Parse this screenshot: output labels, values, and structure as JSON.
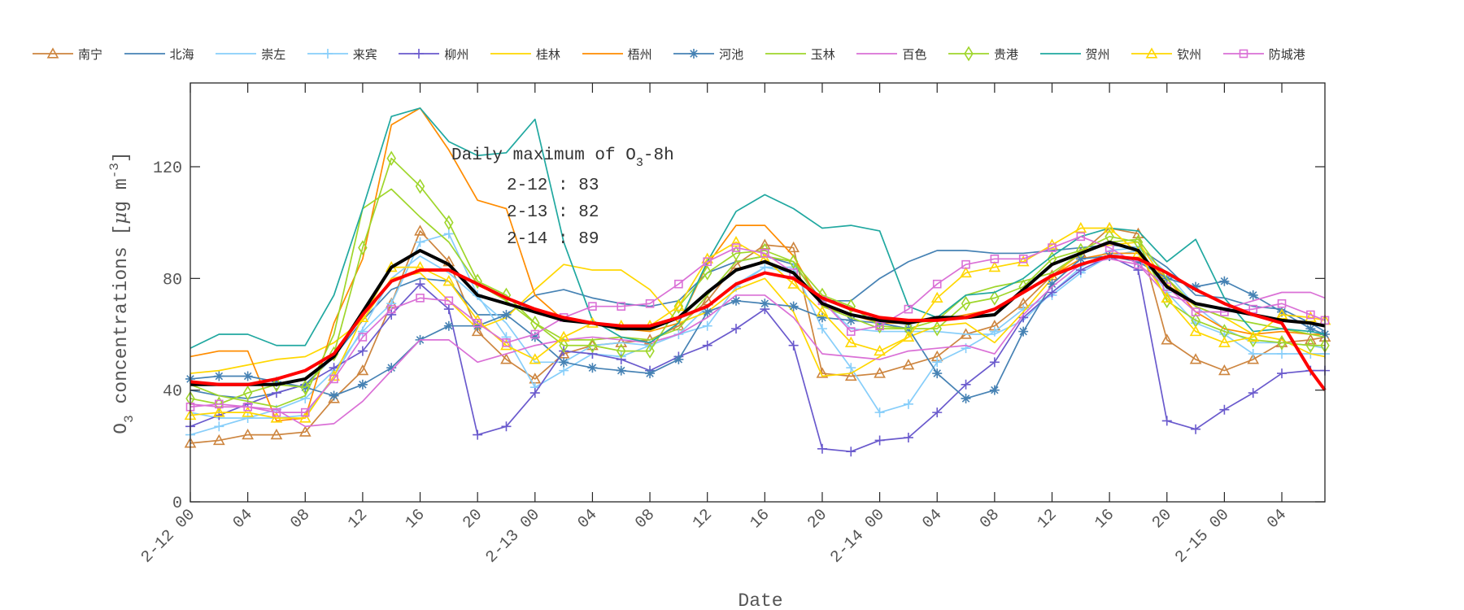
{
  "chart_data": {
    "type": "line",
    "xlabel": "Date",
    "ylabel": {
      "pre": "O",
      "sub": "3",
      "mid": " concentrations [",
      "mu": "μ",
      "unit": "g m",
      "sup": "-3",
      "post": "]"
    },
    "xlim": [
      "2-12 00",
      "2-15 07"
    ],
    "ylim": [
      0,
      150
    ],
    "yticks": [
      0,
      40,
      80,
      120
    ],
    "xticks": [
      {
        "at": "2-12 00",
        "label": "2-12 00"
      },
      {
        "at": "2-12 04",
        "label": "04"
      },
      {
        "at": "2-12 08",
        "label": "08"
      },
      {
        "at": "2-12 12",
        "label": "12"
      },
      {
        "at": "2-12 16",
        "label": "16"
      },
      {
        "at": "2-12 20",
        "label": "20"
      },
      {
        "at": "2-13 00",
        "label": "2-13 00"
      },
      {
        "at": "2-13 04",
        "label": "04"
      },
      {
        "at": "2-13 08",
        "label": "08"
      },
      {
        "at": "2-13 12",
        "label": "12"
      },
      {
        "at": "2-13 16",
        "label": "16"
      },
      {
        "at": "2-13 20",
        "label": "20"
      },
      {
        "at": "2-14 00",
        "label": "2-14 00"
      },
      {
        "at": "2-14 04",
        "label": "04"
      },
      {
        "at": "2-14 08",
        "label": "08"
      },
      {
        "at": "2-14 12",
        "label": "12"
      },
      {
        "at": "2-14 16",
        "label": "16"
      },
      {
        "at": "2-14 20",
        "label": "20"
      },
      {
        "at": "2-15 00",
        "label": "2-15 00"
      },
      {
        "at": "2-15 04",
        "label": "04"
      }
    ],
    "grid": false,
    "legend_position": "top",
    "annotation": {
      "title": {
        "pre": "Daily maximum of O",
        "sub": "3",
        "post": "-8h"
      },
      "lines": [
        "2-12 : 83",
        "2-13 : 82",
        "2-14 : 89"
      ]
    },
    "x": [
      "2-12 00",
      "2-12 02",
      "2-12 04",
      "2-12 06",
      "2-12 08",
      "2-12 10",
      "2-12 12",
      "2-12 14",
      "2-12 16",
      "2-12 18",
      "2-12 20",
      "2-12 22",
      "2-13 00",
      "2-13 02",
      "2-13 04",
      "2-13 06",
      "2-13 08",
      "2-13 10",
      "2-13 12",
      "2-13 14",
      "2-13 16",
      "2-13 18",
      "2-13 20",
      "2-13 22",
      "2-14 00",
      "2-14 02",
      "2-14 04",
      "2-14 06",
      "2-14 08",
      "2-14 10",
      "2-14 12",
      "2-14 14",
      "2-14 16",
      "2-14 18",
      "2-14 20",
      "2-14 22",
      "2-15 00",
      "2-15 02",
      "2-15 04",
      "2-15 06",
      "2-15 07"
    ],
    "series": [
      {
        "name": "南宁",
        "color": "#CD853F",
        "marker": "triangle",
        "values": [
          21,
          22,
          24,
          24,
          25,
          37,
          47,
          71,
          97,
          86,
          61,
          51,
          44,
          53,
          56,
          57,
          58,
          63,
          72,
          85,
          92,
          91,
          46,
          45,
          46,
          49,
          52,
          60,
          63,
          71,
          81,
          89,
          98,
          96,
          58,
          51,
          47,
          51,
          57,
          58,
          59
        ]
      },
      {
        "name": "北海",
        "color": "#4682B4",
        "marker": "none",
        "values": [
          40,
          38,
          37,
          39,
          42,
          52,
          65,
          76,
          80,
          79,
          67,
          67,
          74,
          76,
          73,
          71,
          70,
          72,
          82,
          86,
          88,
          85,
          72,
          72,
          80,
          86,
          90,
          90,
          89,
          89,
          90,
          91,
          92,
          91,
          84,
          74,
          73,
          70,
          69,
          64,
          61
        ]
      },
      {
        "name": "崇左",
        "color": "#87CEFA",
        "marker": "none",
        "values": [
          32,
          30,
          30,
          30,
          31,
          45,
          62,
          80,
          88,
          82,
          73,
          64,
          50,
          50,
          56,
          57,
          56,
          60,
          70,
          78,
          84,
          82,
          72,
          62,
          61,
          61,
          61,
          60,
          60,
          65,
          75,
          84,
          90,
          91,
          82,
          70,
          62,
          57,
          57,
          56,
          55
        ]
      },
      {
        "name": "来宾",
        "color": "#87CEFA",
        "marker": "plus",
        "values": [
          24,
          27,
          30,
          33,
          37,
          47,
          61,
          71,
          93,
          96,
          74,
          59,
          41,
          47,
          53,
          52,
          56,
          60,
          63,
          77,
          84,
          84,
          62,
          48,
          32,
          35,
          50,
          55,
          61,
          69,
          74,
          82,
          88,
          90,
          75,
          64,
          60,
          53,
          53,
          53,
          53
        ]
      },
      {
        "name": "柳州",
        "color": "#6A5ACD",
        "marker": "plus",
        "values": [
          27,
          31,
          35,
          39,
          42,
          48,
          54,
          67,
          78,
          69,
          24,
          27,
          39,
          54,
          53,
          51,
          47,
          52,
          56,
          62,
          69,
          56,
          19,
          18,
          22,
          23,
          32,
          42,
          50,
          66,
          75,
          83,
          88,
          83,
          29,
          26,
          33,
          39,
          46,
          47,
          47
        ]
      },
      {
        "name": "桂林",
        "color": "#FFD700",
        "marker": "none",
        "values": [
          46,
          47,
          49,
          51,
          52,
          57,
          65,
          80,
          82,
          72,
          62,
          66,
          76,
          85,
          83,
          83,
          76,
          64,
          68,
          76,
          80,
          68,
          45,
          46,
          52,
          59,
          63,
          64,
          57,
          68,
          80,
          90,
          92,
          93,
          78,
          70,
          66,
          60,
          58,
          53,
          52
        ]
      },
      {
        "name": "梧州",
        "color": "#FF8C00",
        "marker": "none",
        "values": [
          52,
          54,
          54,
          29,
          30,
          64,
          87,
          135,
          141,
          126,
          108,
          105,
          74,
          65,
          64,
          62,
          61,
          64,
          85,
          99,
          99,
          88,
          70,
          67,
          64,
          64,
          65,
          67,
          69,
          75,
          81,
          87,
          89,
          89,
          80,
          68,
          62,
          60,
          61,
          60,
          60
        ]
      },
      {
        "name": "河池",
        "color": "#4682B4",
        "marker": "asterisk",
        "values": [
          44,
          45,
          45,
          43,
          41,
          38,
          42,
          48,
          58,
          63,
          63,
          67,
          59,
          50,
          48,
          47,
          46,
          51,
          68,
          72,
          71,
          70,
          66,
          65,
          64,
          62,
          46,
          37,
          40,
          61,
          78,
          87,
          88,
          86,
          80,
          77,
          79,
          74,
          68,
          62,
          60
        ]
      },
      {
        "name": "玉林",
        "color": "#9FD62B",
        "marker": "none",
        "values": [
          42,
          38,
          36,
          34,
          38,
          60,
          105,
          112,
          102,
          93,
          78,
          72,
          64,
          58,
          58,
          59,
          58,
          62,
          74,
          86,
          88,
          86,
          70,
          66,
          62,
          62,
          65,
          74,
          77,
          79,
          82,
          89,
          93,
          94,
          80,
          70,
          66,
          64,
          62,
          60,
          59
        ]
      },
      {
        "name": "百色",
        "color": "#DA70D6",
        "marker": "none",
        "values": [
          35,
          34,
          34,
          33,
          27,
          28,
          36,
          47,
          58,
          58,
          50,
          53,
          56,
          58,
          59,
          58,
          57,
          60,
          66,
          74,
          74,
          66,
          53,
          52,
          51,
          54,
          55,
          56,
          53,
          67,
          77,
          85,
          87,
          85,
          74,
          71,
          69,
          72,
          75,
          75,
          73
        ]
      },
      {
        "name": "贵港",
        "color": "#9FD62B",
        "marker": "diamond",
        "values": [
          37,
          35,
          39,
          42,
          41,
          53,
          91,
          123,
          113,
          100,
          79,
          74,
          64,
          56,
          56,
          54,
          54,
          70,
          82,
          89,
          90,
          86,
          74,
          70,
          63,
          62,
          62,
          71,
          73,
          77,
          87,
          90,
          95,
          93,
          72,
          65,
          61,
          58,
          57,
          56,
          56
        ]
      },
      {
        "name": "贺州",
        "color": "#20A8A0",
        "marker": "none",
        "values": [
          55,
          60,
          60,
          56,
          56,
          74,
          105,
          138,
          141,
          129,
          124,
          125,
          137,
          93,
          65,
          59,
          57,
          64,
          86,
          104,
          110,
          105,
          98,
          99,
          97,
          70,
          66,
          74,
          75,
          80,
          88,
          95,
          98,
          97,
          86,
          94,
          73,
          61,
          62,
          61,
          60
        ]
      },
      {
        "name": "钦州",
        "color": "#FFD700",
        "marker": "triangle",
        "values": [
          31,
          32,
          32,
          30,
          30,
          45,
          66,
          84,
          84,
          79,
          65,
          56,
          51,
          59,
          64,
          63,
          63,
          70,
          87,
          93,
          87,
          78,
          68,
          57,
          54,
          59,
          73,
          82,
          84,
          86,
          92,
          98,
          98,
          89,
          73,
          61,
          57,
          59,
          67,
          66,
          65
        ]
      },
      {
        "name": "防城港",
        "color": "#DA70D6",
        "marker": "square",
        "values": [
          34,
          35,
          34,
          32,
          32,
          44,
          59,
          69,
          73,
          72,
          64,
          57,
          60,
          66,
          70,
          70,
          71,
          78,
          86,
          91,
          89,
          82,
          72,
          61,
          63,
          69,
          78,
          85,
          87,
          87,
          91,
          95,
          91,
          85,
          77,
          68,
          68,
          69,
          71,
          67,
          65
        ]
      },
      {
        "color": "#000000",
        "marker": "none",
        "thick": true,
        "values": [
          42,
          42,
          42,
          42,
          44,
          52,
          68,
          84,
          90,
          85,
          74,
          71,
          68,
          65,
          64,
          62,
          62,
          66,
          75,
          83,
          86,
          82,
          71,
          67,
          65,
          64,
          66,
          66,
          67,
          76,
          85,
          89,
          93,
          90,
          77,
          71,
          69,
          67,
          65,
          64,
          63
        ]
      },
      {
        "color": "#FF0000",
        "marker": "none",
        "thick": true,
        "values": [
          43,
          42,
          42,
          44,
          47,
          53,
          67,
          79,
          83,
          83,
          78,
          73,
          69,
          66,
          64,
          63,
          63,
          66,
          70,
          78,
          82,
          80,
          73,
          69,
          66,
          65,
          65,
          66,
          69,
          75,
          81,
          85,
          88,
          87,
          82,
          76,
          71,
          67,
          64,
          47,
          40
        ]
      }
    ]
  }
}
